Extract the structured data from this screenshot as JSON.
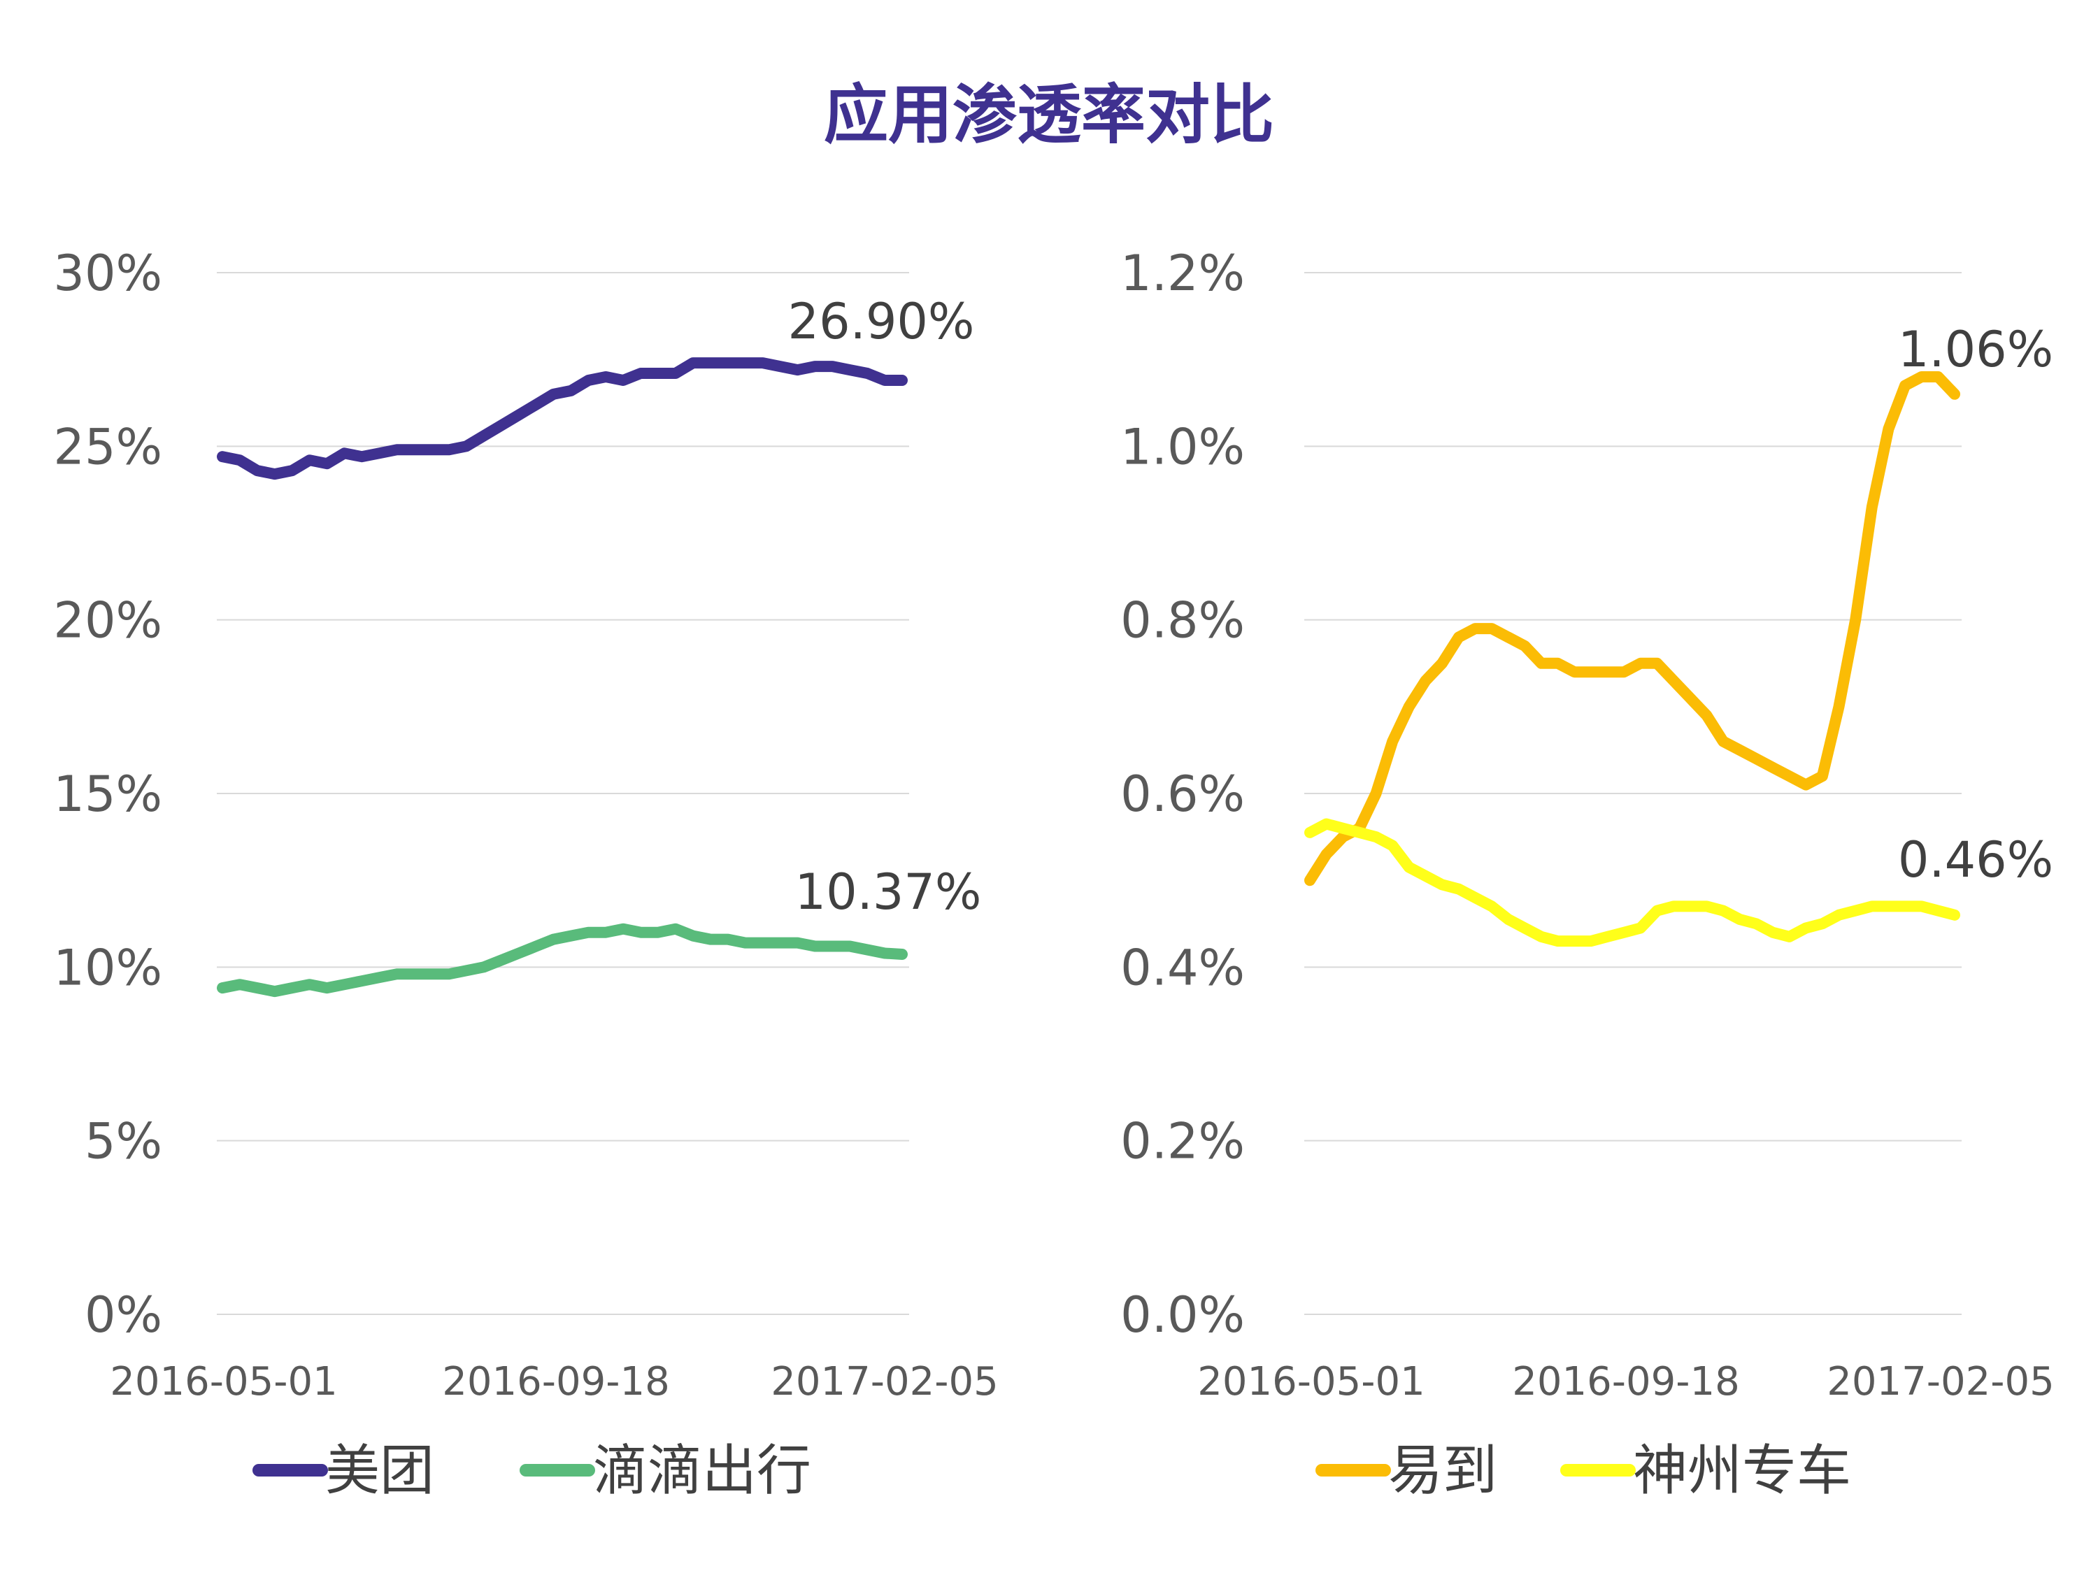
{
  "title": "应用渗透率对比",
  "chart_data": [
    {
      "type": "line",
      "x_ticks": [
        "2016-05-01",
        "2016-09-18",
        "2017-02-05"
      ],
      "ylim": [
        0,
        30
      ],
      "y_ticks": [
        "0%",
        "5%",
        "10%",
        "15%",
        "20%",
        "25%",
        "30%"
      ],
      "grid": true,
      "legend_position": "bottom",
      "series": [
        {
          "name": "美团",
          "color": "#3f3190",
          "end_label": "26.90%",
          "values": [
            24.7,
            24.6,
            24.3,
            24.2,
            24.3,
            24.6,
            24.5,
            24.8,
            24.7,
            24.8,
            24.9,
            24.9,
            24.9,
            24.9,
            25.0,
            25.3,
            25.6,
            25.9,
            26.2,
            26.5,
            26.6,
            26.9,
            27.0,
            26.9,
            27.1,
            27.1,
            27.1,
            27.4,
            27.4,
            27.4,
            27.4,
            27.4,
            27.3,
            27.2,
            27.3,
            27.3,
            27.2,
            27.1,
            26.9,
            26.9
          ]
        },
        {
          "name": "滴滴出行",
          "color": "#59bb7b",
          "end_label": "10.37%",
          "values": [
            9.4,
            9.5,
            9.4,
            9.3,
            9.4,
            9.5,
            9.4,
            9.5,
            9.6,
            9.7,
            9.8,
            9.8,
            9.8,
            9.8,
            9.9,
            10.0,
            10.2,
            10.4,
            10.6,
            10.8,
            10.9,
            11.0,
            11.0,
            11.1,
            11.0,
            11.0,
            11.1,
            10.9,
            10.8,
            10.8,
            10.7,
            10.7,
            10.7,
            10.7,
            10.6,
            10.6,
            10.6,
            10.5,
            10.4,
            10.37
          ]
        }
      ]
    },
    {
      "type": "line",
      "x_ticks": [
        "2016-05-01",
        "2016-09-18",
        "2017-02-05"
      ],
      "ylim": [
        0,
        1.2
      ],
      "y_ticks": [
        "0.0%",
        "0.2%",
        "0.4%",
        "0.6%",
        "0.8%",
        "1.0%",
        "1.2%"
      ],
      "grid": true,
      "legend_position": "bottom",
      "series": [
        {
          "name": "易到",
          "color": "#fbbc05",
          "end_label": "1.06%",
          "values": [
            0.5,
            0.53,
            0.55,
            0.56,
            0.6,
            0.66,
            0.7,
            0.73,
            0.75,
            0.78,
            0.79,
            0.79,
            0.78,
            0.77,
            0.75,
            0.75,
            0.74,
            0.74,
            0.74,
            0.74,
            0.75,
            0.75,
            0.73,
            0.71,
            0.69,
            0.66,
            0.65,
            0.64,
            0.63,
            0.62,
            0.61,
            0.62,
            0.7,
            0.8,
            0.93,
            1.02,
            1.07,
            1.08,
            1.08,
            1.06
          ]
        },
        {
          "name": "神州专车",
          "color": "#ffff1a",
          "end_label": "0.46%",
          "values": [
            0.555,
            0.565,
            0.56,
            0.555,
            0.55,
            0.54,
            0.515,
            0.505,
            0.495,
            0.49,
            0.48,
            0.47,
            0.455,
            0.445,
            0.435,
            0.43,
            0.43,
            0.43,
            0.435,
            0.44,
            0.445,
            0.465,
            0.47,
            0.47,
            0.47,
            0.465,
            0.455,
            0.45,
            0.44,
            0.435,
            0.445,
            0.45,
            0.46,
            0.465,
            0.47,
            0.47,
            0.47,
            0.47,
            0.465,
            0.46
          ]
        }
      ]
    }
  ]
}
